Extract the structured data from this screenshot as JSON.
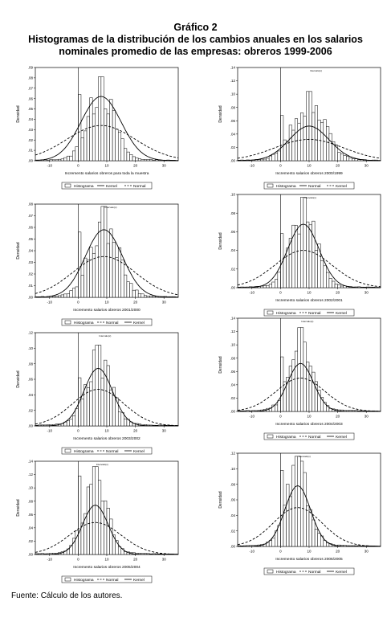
{
  "figure": {
    "label": "Gráfico 2",
    "title_line1": "Histogramas de la distribución de los cambios anuales en los salarios",
    "title_line2": "nominales promedio de las empresas: obreros 1999-2006",
    "source": "Fuente: Cálculo de los autores."
  },
  "colors": {
    "bar_fill": "#ffffff",
    "bar_stroke": "#000000",
    "line": "#000000"
  },
  "chart_data": [
    {
      "type": "bar",
      "xlabel": "Incremento salarios obreros para toda la muestra",
      "ylabel": "Densidad",
      "xticks": [
        "-10",
        "0",
        "10",
        "20",
        "30"
      ],
      "yticks": [
        ".00",
        ".01",
        ".02",
        ".03",
        ".04",
        ".05",
        ".06",
        ".07",
        ".08",
        ".09"
      ],
      "xlim": [
        -15,
        35
      ],
      "ylim": [
        0,
        0.09
      ],
      "peak_x": 8,
      "peak_height": 0.081,
      "left_bump": 0.064,
      "spread": 4.5,
      "curves": [
        {
          "name": "Kernel",
          "style": "solid",
          "peak": 0.062,
          "sd": 7
        },
        {
          "name": "Normal",
          "style": "dashed",
          "peak": 0.034,
          "sd": 12
        }
      ],
      "legend": [
        "Histograma",
        "Kernel",
        "Normal"
      ],
      "annotation": ""
    },
    {
      "type": "bar",
      "xlabel": "Incremento salarios obreros 2000/1999",
      "ylabel": "Densidad",
      "xticks": [
        "-10",
        "0",
        "10",
        "20",
        "30"
      ],
      "yticks": [
        ".00",
        ".02",
        ".04",
        ".06",
        ".08",
        ".10",
        ".12",
        ".14"
      ],
      "xlim": [
        -15,
        35
      ],
      "ylim": [
        0,
        0.14
      ],
      "peak_x": 10,
      "peak_height": 0.104,
      "left_bump": 0.068,
      "spread": 5.5,
      "curves": [
        {
          "name": "Normal",
          "style": "solid",
          "peak": 0.052,
          "sd": 7
        },
        {
          "name": "Kernel",
          "style": "dashed",
          "peak": 0.032,
          "sd": 12
        }
      ],
      "legend": [
        "Histograma",
        "Normal",
        "Kernel"
      ],
      "annotation": "Intervalo(x)"
    },
    {
      "type": "bar",
      "xlabel": "Incremento salarios obreros 2001/2000",
      "ylabel": "Densidad",
      "xticks": [
        "-10",
        "0",
        "10",
        "20",
        "30"
      ],
      "yticks": [
        ".00",
        ".01",
        ".02",
        ".03",
        ".04",
        ".05",
        ".06",
        ".07",
        ".08"
      ],
      "xlim": [
        -15,
        35
      ],
      "ylim": [
        0,
        0.08
      ],
      "peak_x": 9,
      "peak_height": 0.078,
      "left_bump": 0.056,
      "spread": 5,
      "curves": [
        {
          "name": "Normal",
          "style": "dashed",
          "peak": 0.035,
          "sd": 11
        },
        {
          "name": "Kernel",
          "style": "solid",
          "peak": 0.058,
          "sd": 6.5
        }
      ],
      "legend": [
        "Histograma",
        "Normal",
        "Kernel"
      ],
      "annotation": "Intervalo(x)"
    },
    {
      "type": "bar",
      "xlabel": "Incremento salarios obreros 2002/2001",
      "ylabel": "Densidad",
      "xticks": [
        "-10",
        "0",
        "10",
        "20",
        "30"
      ],
      "yticks": [
        ".00",
        ".02",
        ".04",
        ".06",
        ".08",
        ".10"
      ],
      "xlim": [
        -15,
        35
      ],
      "ylim": [
        0,
        0.1
      ],
      "peak_x": 8,
      "peak_height": 0.097,
      "left_bump": 0.058,
      "spread": 4.5,
      "curves": [
        {
          "name": "Normal",
          "style": "dashed",
          "peak": 0.04,
          "sd": 10
        },
        {
          "name": "Kernel",
          "style": "solid",
          "peak": 0.068,
          "sd": 5.5
        }
      ],
      "legend": [
        "Histograma",
        "Normal",
        "Kernel"
      ],
      "annotation": "Intervalo(x)"
    },
    {
      "type": "bar",
      "xlabel": "Incremento salarios obreros 2003/2002",
      "ylabel": "Densidad",
      "xticks": [
        "-10",
        "0",
        "10",
        "20",
        "30"
      ],
      "yticks": [
        ".00",
        ".02",
        ".04",
        ".06",
        ".08",
        ".10",
        ".12"
      ],
      "xlim": [
        -15,
        35
      ],
      "ylim": [
        0,
        0.12
      ],
      "peak_x": 7,
      "peak_height": 0.104,
      "left_bump": 0.062,
      "spread": 4.5,
      "curves": [
        {
          "name": "Normal",
          "style": "dashed",
          "peak": 0.047,
          "sd": 9
        },
        {
          "name": "Kernel",
          "style": "solid",
          "peak": 0.074,
          "sd": 5
        }
      ],
      "legend": [
        "Histograma",
        "Normal",
        "Kernel"
      ],
      "annotation": "Intervalo(x)"
    },
    {
      "type": "bar",
      "xlabel": "Incremento salarios obreros 2004/2003",
      "ylabel": "Densidad",
      "xticks": [
        "-10",
        "0",
        "10",
        "20",
        "30"
      ],
      "yticks": [
        ".00",
        ".02",
        ".04",
        ".06",
        ".08",
        ".10",
        ".12",
        ".14"
      ],
      "xlim": [
        -15,
        35
      ],
      "ylim": [
        0,
        0.14
      ],
      "peak_x": 7,
      "peak_height": 0.126,
      "left_bump": 0.082,
      "spread": 4,
      "curves": [
        {
          "name": "Normal",
          "style": "dashed",
          "peak": 0.05,
          "sd": 8.5
        },
        {
          "name": "Kernel",
          "style": "solid",
          "peak": 0.072,
          "sd": 4.5
        }
      ],
      "legend": [
        "Histograma",
        "Normal",
        "Kernel"
      ],
      "annotation": "Intervalo(x)"
    },
    {
      "type": "bar",
      "xlabel": "Incremento salarios obreros 2005/2004",
      "ylabel": "Densidad",
      "xticks": [
        "-10",
        "0",
        "10",
        "20",
        "30"
      ],
      "yticks": [
        ".00",
        ".02",
        ".04",
        ".06",
        ".08",
        ".10",
        ".12",
        ".14"
      ],
      "xlim": [
        -15,
        35
      ],
      "ylim": [
        0,
        0.14
      ],
      "peak_x": 6,
      "peak_height": 0.132,
      "left_bump": 0.118,
      "spread": 4,
      "curves": [
        {
          "name": "Normal",
          "style": "dashed",
          "peak": 0.048,
          "sd": 9
        },
        {
          "name": "Kernel",
          "style": "solid",
          "peak": 0.074,
          "sd": 4.5
        }
      ],
      "legend": [
        "Histograma",
        "Normal",
        "Kernel"
      ],
      "annotation": "Intervalo(x)"
    },
    {
      "type": "bar",
      "xlabel": "Incremento salarios obreros 2006/2005",
      "ylabel": "Densidad",
      "xticks": [
        "-10",
        "0",
        "10",
        "20",
        "30"
      ],
      "yticks": [
        ".00",
        ".02",
        ".04",
        ".06",
        ".08",
        ".10",
        ".12"
      ],
      "xlim": [
        -15,
        35
      ],
      "ylim": [
        0,
        0.12
      ],
      "peak_x": 6,
      "peak_height": 0.116,
      "left_bump": 0.098,
      "spread": 4,
      "curves": [
        {
          "name": "Normal",
          "style": "dashed",
          "peak": 0.05,
          "sd": 8.5
        },
        {
          "name": "Kernel",
          "style": "solid",
          "peak": 0.078,
          "sd": 4.5
        }
      ],
      "legend": [
        "Histograma",
        "Normal",
        "Kernel"
      ],
      "annotation": "Intervalo(x)"
    }
  ]
}
